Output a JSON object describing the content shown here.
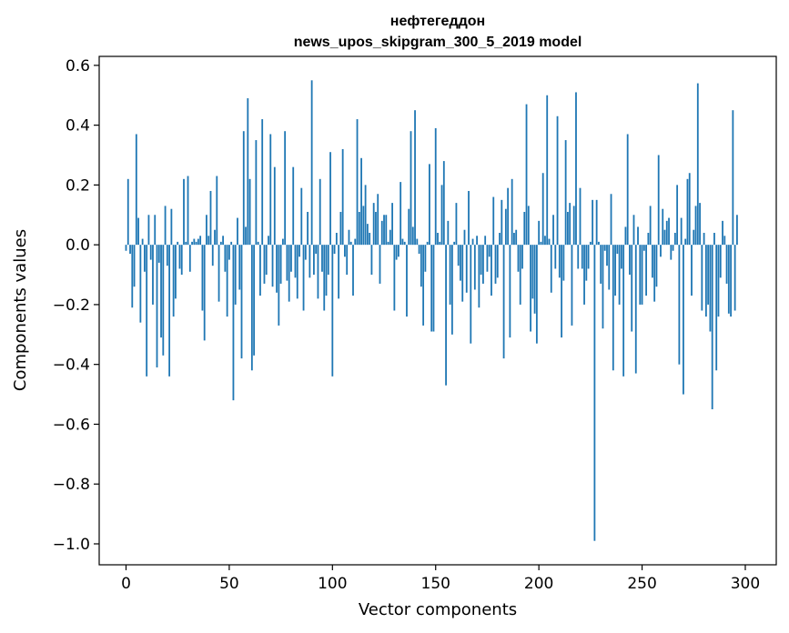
{
  "chart_data": {
    "type": "bar",
    "title": "нефтегеддон",
    "subtitle": "news_upos_skipgram_300_5_2019 model",
    "xlabel": "Vector components",
    "ylabel": "Components values",
    "xlim": [
      -13,
      315
    ],
    "ylim": [
      -1.07,
      0.63
    ],
    "xticks": [
      0,
      50,
      100,
      150,
      200,
      250,
      300
    ],
    "xtick_labels": [
      "0",
      "50",
      "100",
      "150",
      "200",
      "250",
      "300"
    ],
    "yticks": [
      0.6,
      0.4,
      0.2,
      0.0,
      -0.2,
      -0.4,
      -0.6,
      -0.8,
      -1.0
    ],
    "ytick_labels": [
      "0.6",
      "0.4",
      "0.2",
      "0.0",
      "−0.2",
      "−0.4",
      "−0.6",
      "−0.8",
      "−1.0"
    ],
    "grid": false,
    "bar_color": "#1f77b4",
    "values": [
      -0.02,
      0.22,
      -0.03,
      -0.21,
      -0.14,
      0.37,
      0.09,
      -0.26,
      0.02,
      -0.09,
      -0.44,
      0.1,
      -0.05,
      -0.2,
      0.1,
      -0.41,
      -0.06,
      -0.31,
      -0.37,
      0.13,
      -0.07,
      -0.44,
      0.12,
      -0.24,
      -0.18,
      0.01,
      -0.08,
      -0.1,
      0.22,
      0.01,
      0.23,
      -0.09,
      0.01,
      0.02,
      0.01,
      0.02,
      0.03,
      -0.22,
      -0.32,
      0.1,
      0.03,
      0.18,
      -0.07,
      0.05,
      0.23,
      -0.19,
      0.01,
      0.03,
      -0.09,
      -0.24,
      -0.05,
      0.01,
      -0.52,
      -0.2,
      0.09,
      -0.15,
      -0.38,
      0.38,
      0.06,
      0.49,
      0.22,
      -0.42,
      -0.37,
      0.35,
      0.01,
      -0.17,
      0.42,
      -0.13,
      -0.1,
      0.03,
      0.37,
      -0.14,
      0.26,
      -0.16,
      -0.27,
      -0.13,
      0.02,
      0.38,
      -0.12,
      -0.19,
      -0.09,
      0.26,
      -0.11,
      -0.18,
      -0.04,
      0.19,
      -0.22,
      -0.05,
      0.11,
      -0.11,
      0.55,
      -0.1,
      -0.03,
      -0.18,
      0.22,
      -0.09,
      -0.22,
      -0.17,
      -0.1,
      0.31,
      -0.44,
      -0.03,
      0.04,
      -0.18,
      0.11,
      0.32,
      -0.04,
      -0.1,
      0.05,
      0.01,
      -0.17,
      0.02,
      0.42,
      0.11,
      0.29,
      0.13,
      0.2,
      0.07,
      0.04,
      -0.1,
      0.14,
      0.11,
      0.17,
      -0.13,
      0.08,
      0.1,
      0.1,
      0.01,
      0.05,
      0.14,
      -0.22,
      -0.05,
      -0.04,
      0.21,
      0.02,
      0.01,
      -0.24,
      0.12,
      0.38,
      0.06,
      0.45,
      0.02,
      -0.03,
      -0.14,
      -0.27,
      -0.09,
      0.01,
      0.27,
      -0.29,
      -0.29,
      0.39,
      0.04,
      0.01,
      0.2,
      0.28,
      -0.47,
      0.08,
      -0.2,
      -0.3,
      0.01,
      0.14,
      -0.07,
      -0.12,
      -0.19,
      0.05,
      -0.16,
      0.18,
      -0.33,
      0.02,
      -0.15,
      0.03,
      -0.21,
      -0.1,
      -0.13,
      0.03,
      -0.09,
      -0.04,
      -0.17,
      0.16,
      -0.13,
      -0.11,
      0.04,
      0.15,
      -0.38,
      0.12,
      0.19,
      -0.31,
      0.22,
      0.04,
      0.05,
      -0.09,
      -0.2,
      -0.08,
      0.11,
      0.47,
      0.13,
      -0.29,
      -0.18,
      -0.23,
      -0.33,
      0.08,
      0.01,
      0.24,
      0.03,
      0.5,
      0.02,
      -0.16,
      0.1,
      -0.08,
      0.43,
      -0.11,
      -0.31,
      -0.12,
      0.35,
      0.11,
      0.14,
      -0.27,
      0.13,
      0.51,
      -0.08,
      0.19,
      -0.08,
      -0.2,
      -0.12,
      -0.08,
      0.01,
      0.15,
      -0.99,
      0.15,
      0.01,
      -0.13,
      -0.28,
      -0.02,
      -0.07,
      -0.15,
      0.17,
      -0.42,
      -0.17,
      -0.03,
      -0.2,
      -0.08,
      -0.44,
      0.06,
      0.37,
      -0.1,
      -0.29,
      0.1,
      -0.43,
      0.06,
      -0.2,
      -0.2,
      -0.02,
      -0.17,
      0.04,
      0.13,
      -0.11,
      -0.19,
      -0.14,
      0.3,
      -0.04,
      0.12,
      0.05,
      0.08,
      0.09,
      -0.05,
      -0.02,
      0.04,
      0.2,
      -0.4,
      0.09,
      -0.5,
      0.02,
      0.22,
      0.24,
      -0.17,
      0.05,
      0.13,
      0.54,
      0.14,
      -0.22,
      0.04,
      -0.24,
      -0.2,
      -0.29,
      -0.55,
      0.04,
      -0.42,
      -0.24,
      -0.11,
      0.08,
      0.03,
      -0.13,
      -0.23,
      -0.24,
      0.45,
      -0.22,
      0.1
    ]
  }
}
